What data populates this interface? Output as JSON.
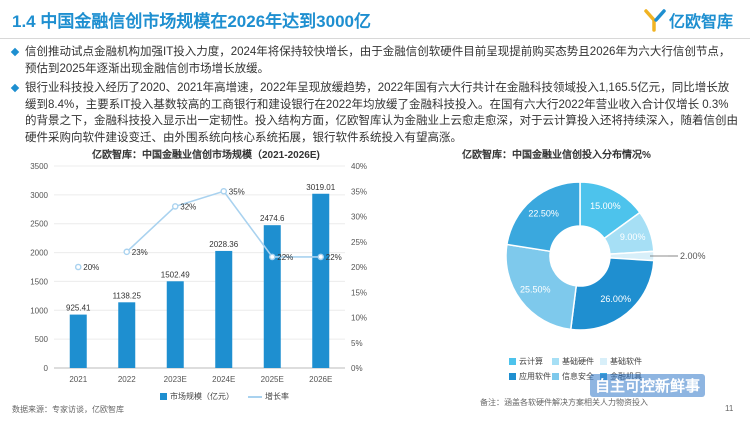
{
  "header": {
    "title": "1.4 中国金融信创市场规模在2026年达到3000亿",
    "logo_text": "亿欧智库",
    "accent": "#1e8fd0"
  },
  "bullets": [
    "信创推动试点金融机构加强IT投入力度，2024年将保持较快增长，由于金融信创软硬件目前呈现提前购买态势且2026年为六大行信创节点，预估到2025年逐渐出现金融信创市场增长放缓。",
    "银行业科技投入经历了2020、2021年高增速，2022年呈现放缓趋势，2022年国有六大行共计在金融科技领域投入1,165.5亿元，同比增长放缓到8.4%，主要系IT投入基数较高的工商银行和建设银行在2022年均放缓了金融科技投入。在国有六大行2022年营业收入合计仅增长 0.3%的背景之下，金融科技投入显示出一定韧性。投入结构方面，亿欧智库认为金融业上云愈走愈深，对于云计算投入还将持续深入，随着信创由硬件采购向软件建设变迁、由外围系统向核心系统拓展，银行软件系统投入有望高涨。"
  ],
  "footer": {
    "source": "数据来源：专家访谈，亿欧智库",
    "note": "备注：涵盖各软硬件解决方案相关人力物资投入",
    "page": "11",
    "watermark": "自主可控新鲜事"
  },
  "chart_data": [
    {
      "type": "bar",
      "title": "亿欧智库：中国金融业信创市场规模（2021-2026E)",
      "categories": [
        "2021",
        "2022",
        "2023E",
        "2024E",
        "2025E",
        "2026E"
      ],
      "series": [
        {
          "name": "市场规模（亿元）",
          "values": [
            925.41,
            1138.25,
            1502.49,
            2028.36,
            2474.6,
            3019.01
          ],
          "color": "#1e8fd0",
          "axis": "left"
        },
        {
          "name": "增长率",
          "type": "line",
          "values": [
            null,
            23,
            32,
            35,
            22,
            22
          ],
          "value_labels": [
            "20%",
            "23%",
            "32%",
            "35%",
            "22%",
            "22%"
          ],
          "marker_positions": [
            20,
            23,
            32,
            35,
            22,
            22
          ],
          "color": "#a9d2ef",
          "axis": "right"
        }
      ],
      "value_labels": [
        "925.41",
        "1138.25",
        "1502.49",
        "2028.36",
        "2474.6",
        "3019.01"
      ],
      "ylim_left": [
        0,
        3500
      ],
      "yticks_left": [
        "0",
        "500",
        "1000",
        "1500",
        "2000",
        "2500",
        "3000",
        "3500"
      ],
      "ylim_right": [
        0,
        40
      ],
      "yticks_right": [
        "0%",
        "5%",
        "10%",
        "15%",
        "20%",
        "25%",
        "30%",
        "35%",
        "40%"
      ],
      "legend": [
        "市场规模（亿元）",
        "增长率"
      ]
    },
    {
      "type": "pie",
      "title": "亿欧智库：中国金融业信创投入分布情况%",
      "labels": [
        "云计算",
        "基础硬件",
        "基础软件",
        "应用软件",
        "信息安全",
        "金融机具"
      ],
      "values": [
        15.0,
        9.0,
        2.0,
        26.0,
        25.5,
        22.5
      ],
      "slice_order": [
        "云计算",
        "基础硬件",
        "基础软件",
        "应用软件",
        "信息安全",
        "金融机具"
      ],
      "value_labels": [
        "15.00%",
        "9.00%",
        "2.00%",
        "26.00%",
        "25.50%",
        "22.50%"
      ],
      "colors": [
        "#4dc3ec",
        "#a6dff5",
        "#d8eff9",
        "#1f8fd0",
        "#7ec9ec",
        "#3aa8de"
      ],
      "legend_labels": [
        "云计算",
        "基础硬件",
        "基础软件",
        "应用软件",
        "信息安全",
        "金融机具"
      ]
    }
  ]
}
